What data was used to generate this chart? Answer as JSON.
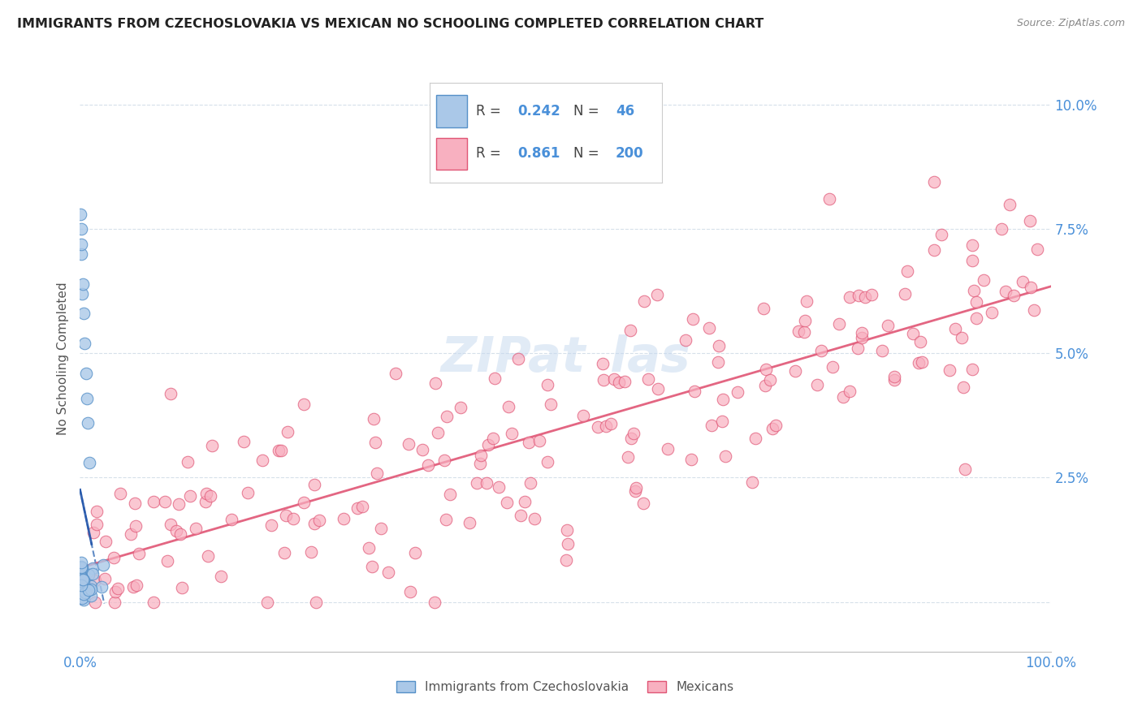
{
  "title": "IMMIGRANTS FROM CZECHOSLOVAKIA VS MEXICAN NO SCHOOLING COMPLETED CORRELATION CHART",
  "source": "Source: ZipAtlas.com",
  "ylabel": "No Schooling Completed",
  "legend_R1": "0.242",
  "legend_N1": "46",
  "legend_R2": "0.861",
  "legend_N2": "200",
  "color_czech": "#aac8e8",
  "color_czech_line": "#5590c8",
  "color_czech_trend": "#4477bb",
  "color_mexican": "#f8b0c0",
  "color_mexican_line": "#e05575",
  "color_text_blue": "#4a90d9",
  "xlim": [
    0.0,
    1.0
  ],
  "ylim": [
    -0.01,
    0.108
  ],
  "ytick_values": [
    0.0,
    0.025,
    0.05,
    0.075,
    0.1
  ],
  "ytick_labels": [
    "",
    "2.5%",
    "5.0%",
    "7.5%",
    "10.0%"
  ]
}
